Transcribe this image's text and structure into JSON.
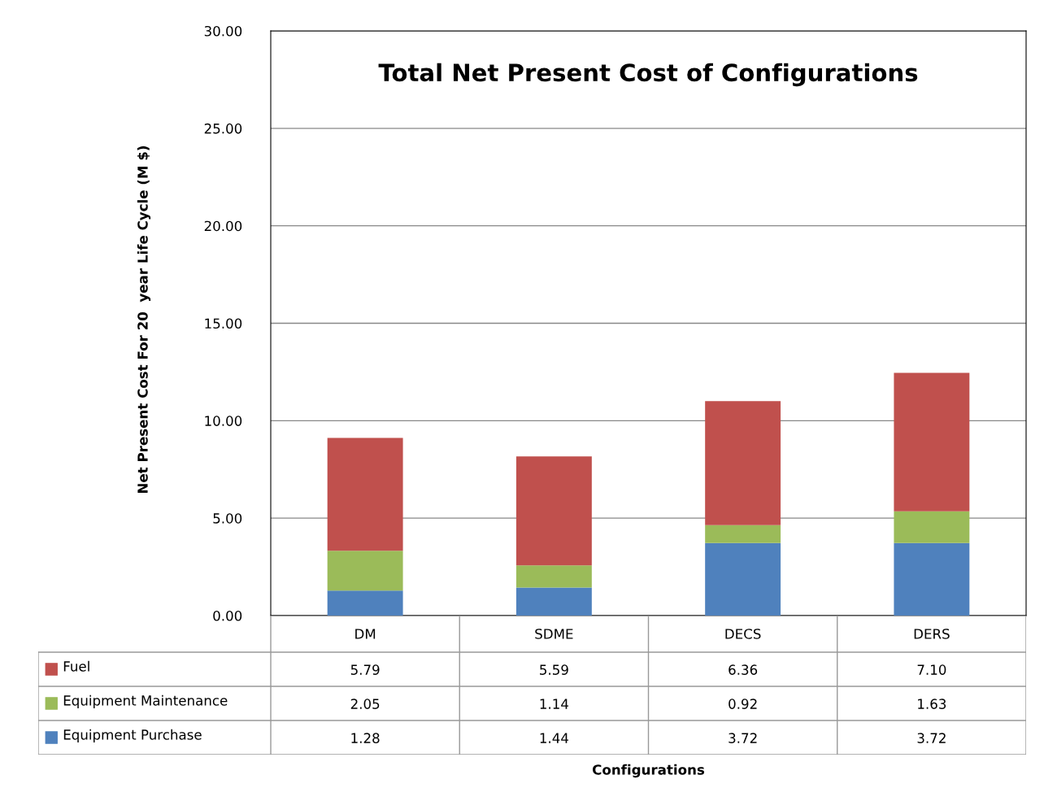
{
  "chart_data": {
    "type": "bar",
    "stacked": true,
    "title": "Total Net Present Cost of Configurations",
    "ylabel": "Net Present Cost For 20  year Life Cycle (M $)",
    "annotations": [
      "Configurations"
    ],
    "categories": [
      "DM",
      "SDME",
      "DECS",
      "DERS"
    ],
    "series": [
      {
        "name": "Equipment Purchase",
        "color": "#4f81bd",
        "values": [
          1.28,
          1.44,
          3.72,
          3.72
        ],
        "value_labels": [
          "1.28",
          "1.44",
          "3.72",
          "3.72"
        ]
      },
      {
        "name": "Equipment Maintenance",
        "color": "#9bbb59",
        "values": [
          2.05,
          1.14,
          0.92,
          1.63
        ],
        "value_labels": [
          "2.05",
          "1.14",
          "0.92",
          "1.63"
        ]
      },
      {
        "name": "Fuel",
        "color": "#c0504d",
        "values": [
          5.79,
          5.59,
          6.36,
          7.1
        ],
        "value_labels": [
          "5.79",
          "5.59",
          "6.36",
          "7.10"
        ]
      }
    ],
    "ylim": [
      0,
      30
    ],
    "yticks": [
      {
        "value": 0,
        "label": "0.00"
      },
      {
        "value": 5,
        "label": "5.00"
      },
      {
        "value": 10,
        "label": "10.00"
      },
      {
        "value": 15,
        "label": "15.00"
      },
      {
        "value": 20,
        "label": "20.00"
      },
      {
        "value": 25,
        "label": "25.00"
      },
      {
        "value": 30,
        "label": "30.00"
      }
    ],
    "grid": "y",
    "legend": "bottom left"
  }
}
